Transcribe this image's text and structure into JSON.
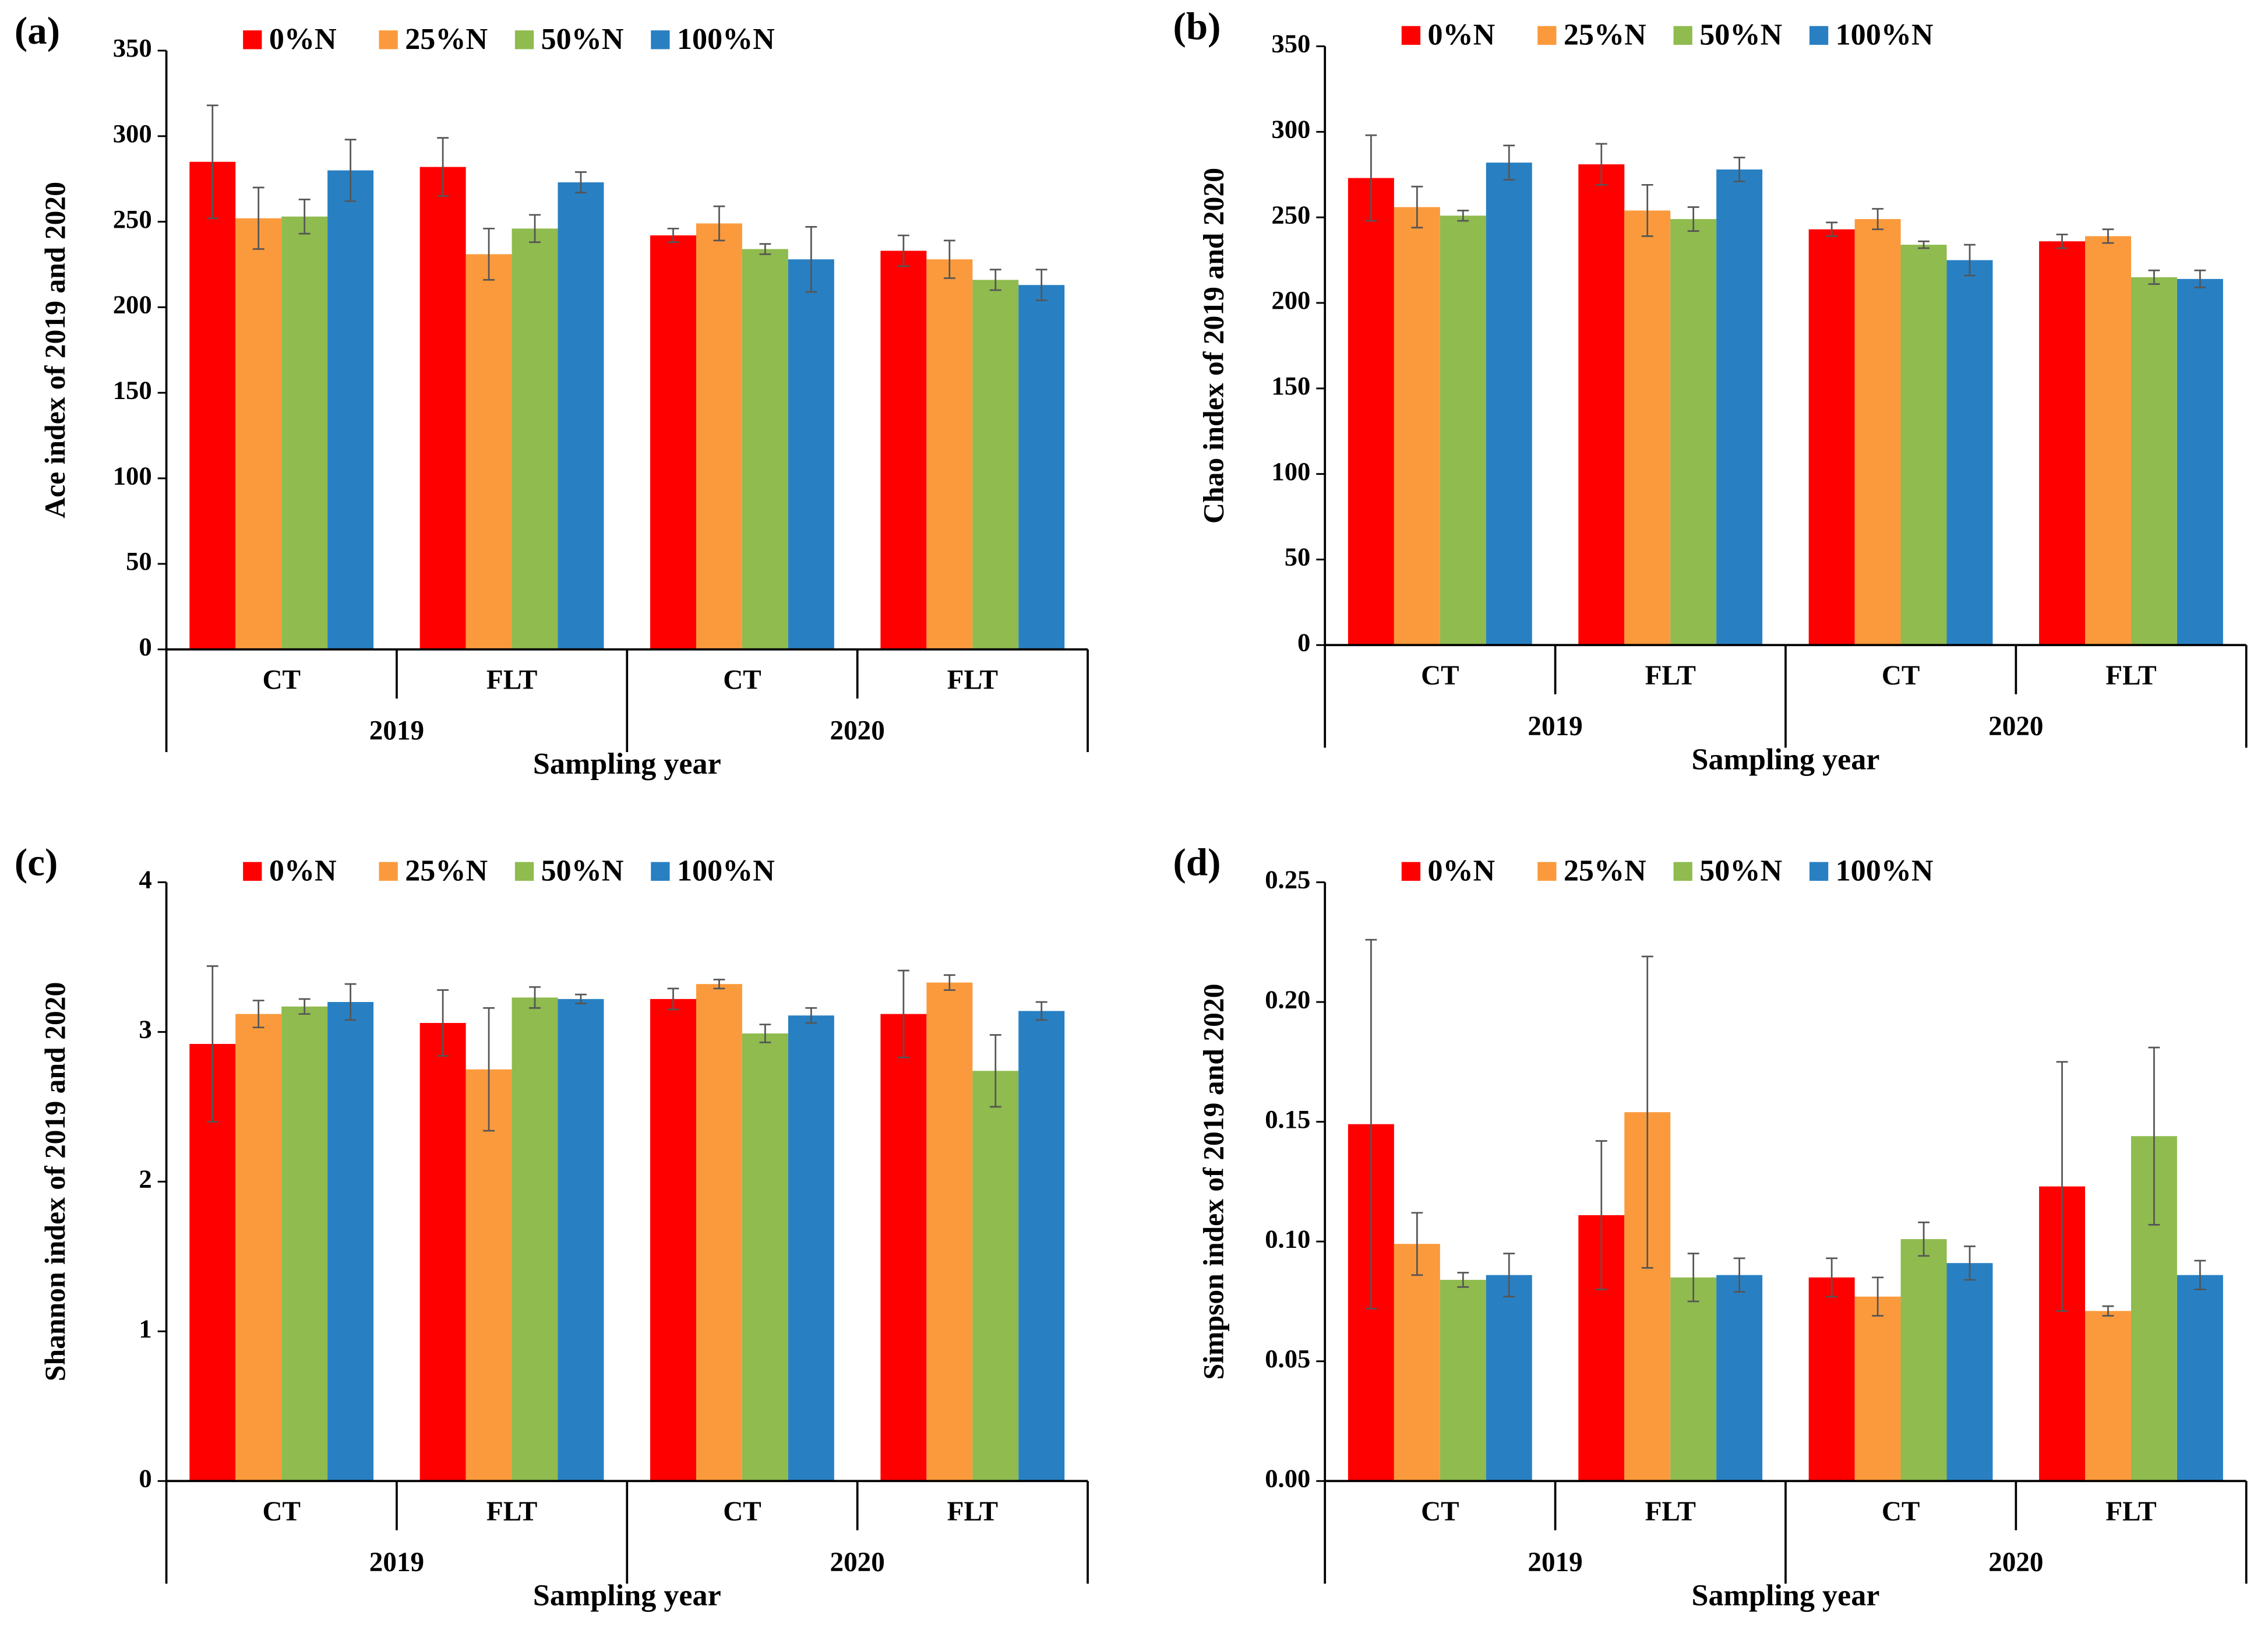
{
  "chart_data": [
    {
      "type": "bar",
      "panel_label": "(a)",
      "y_label": "Ace index of 2019 and 2020",
      "x_label": "Sampling year",
      "categories": [
        "CT",
        "FLT",
        "CT",
        "FLT"
      ],
      "groups": [
        "2019",
        "2020"
      ],
      "ylim": [
        0,
        350
      ],
      "yticks": [
        0,
        50,
        100,
        150,
        200,
        250,
        300,
        350
      ],
      "series": [
        {
          "name": "0%N",
          "color": "#ff0000",
          "values": [
            285,
            282,
            242,
            233
          ],
          "errors": [
            33,
            17,
            4,
            9
          ]
        },
        {
          "name": "25%N",
          "color": "#fb9a3c",
          "values": [
            252,
            231,
            249,
            228
          ],
          "errors": [
            18,
            15,
            10,
            11
          ]
        },
        {
          "name": "50%N",
          "color": "#8fbb4f",
          "values": [
            253,
            246,
            234,
            216
          ],
          "errors": [
            10,
            8,
            3,
            6
          ]
        },
        {
          "name": "100%N",
          "color": "#2880c3",
          "values": [
            280,
            273,
            228,
            213
          ],
          "errors": [
            18,
            6,
            19,
            9
          ]
        }
      ]
    },
    {
      "type": "bar",
      "panel_label": "(b)",
      "y_label": "Chao index of 2019 and 2020",
      "x_label": "Sampling year",
      "categories": [
        "CT",
        "FLT",
        "CT",
        "FLT"
      ],
      "groups": [
        "2019",
        "2020"
      ],
      "ylim": [
        0,
        350
      ],
      "yticks": [
        0,
        50,
        100,
        150,
        200,
        250,
        300,
        350
      ],
      "series": [
        {
          "name": "0%N",
          "color": "#ff0000",
          "values": [
            273,
            281,
            243,
            236
          ],
          "errors": [
            25,
            12,
            4,
            4
          ]
        },
        {
          "name": "25%N",
          "color": "#fb9a3c",
          "values": [
            256,
            254,
            249,
            239
          ],
          "errors": [
            12,
            15,
            6,
            4
          ]
        },
        {
          "name": "50%N",
          "color": "#8fbb4f",
          "values": [
            251,
            249,
            234,
            215
          ],
          "errors": [
            3,
            7,
            2,
            4
          ]
        },
        {
          "name": "100%N",
          "color": "#2880c3",
          "values": [
            282,
            278,
            225,
            214
          ],
          "errors": [
            10,
            7,
            9,
            5
          ]
        }
      ]
    },
    {
      "type": "bar",
      "panel_label": "(c)",
      "y_label": "Shannon index of 2019 and 2020",
      "x_label": "Sampling year",
      "categories": [
        "CT",
        "FLT",
        "CT",
        "FLT"
      ],
      "groups": [
        "2019",
        "2020"
      ],
      "ylim": [
        0,
        4
      ],
      "yticks": [
        0,
        1,
        2,
        3,
        4
      ],
      "series": [
        {
          "name": "0%N",
          "color": "#ff0000",
          "values": [
            2.92,
            3.06,
            3.22,
            3.12
          ],
          "errors": [
            0.52,
            0.22,
            0.07,
            0.29
          ]
        },
        {
          "name": "25%N",
          "color": "#fb9a3c",
          "values": [
            3.12,
            2.75,
            3.32,
            3.33
          ],
          "errors": [
            0.09,
            0.41,
            0.03,
            0.05
          ]
        },
        {
          "name": "50%N",
          "color": "#8fbb4f",
          "values": [
            3.17,
            3.23,
            2.99,
            2.74
          ],
          "errors": [
            0.05,
            0.07,
            0.06,
            0.24
          ]
        },
        {
          "name": "100%N",
          "color": "#2880c3",
          "values": [
            3.2,
            3.22,
            3.11,
            3.14
          ],
          "errors": [
            0.12,
            0.03,
            0.05,
            0.06
          ]
        }
      ]
    },
    {
      "type": "bar",
      "panel_label": "(d)",
      "y_label": "Simpson index of 2019 and 2020",
      "x_label": "Sampling year",
      "categories": [
        "CT",
        "FLT",
        "CT",
        "FLT"
      ],
      "groups": [
        "2019",
        "2020"
      ],
      "ylim": [
        0,
        0.25
      ],
      "yticks": [
        {
          "value": 0,
          "label": "0.00"
        },
        0.05,
        {
          "value": 0.1,
          "label": "0.10"
        },
        0.15,
        {
          "value": 0.2,
          "label": "0.20"
        },
        0.25
      ],
      "series": [
        {
          "name": "0%N",
          "color": "#ff0000",
          "values": [
            0.149,
            0.111,
            0.085,
            0.123
          ],
          "errors": [
            0.077,
            0.031,
            0.008,
            0.052
          ]
        },
        {
          "name": "25%N",
          "color": "#fb9a3c",
          "values": [
            0.099,
            0.154,
            0.077,
            0.071
          ],
          "errors": [
            0.013,
            0.065,
            0.008,
            0.002
          ]
        },
        {
          "name": "50%N",
          "color": "#8fbb4f",
          "values": [
            0.084,
            0.085,
            0.101,
            0.144
          ],
          "errors": [
            0.003,
            0.01,
            0.007,
            0.037
          ]
        },
        {
          "name": "100%N",
          "color": "#2880c3",
          "values": [
            0.086,
            0.086,
            0.091,
            0.086
          ],
          "errors": [
            0.009,
            0.007,
            0.007,
            0.006
          ]
        }
      ]
    }
  ]
}
